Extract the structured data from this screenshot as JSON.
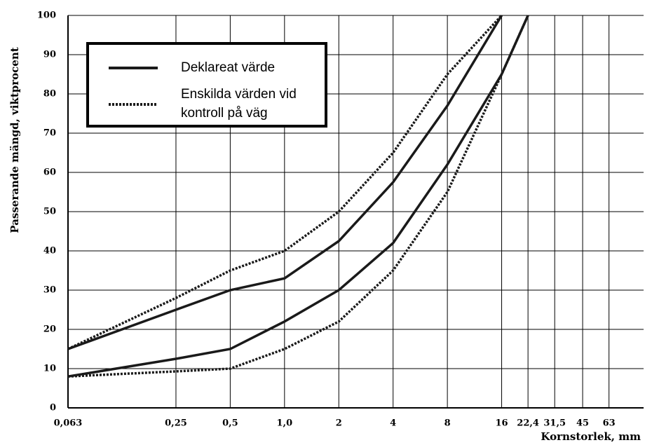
{
  "chart_data": {
    "type": "line",
    "y_label": "Passerande mängd, viktprocent",
    "x_label": "Kornstorlek, mm",
    "x": [
      0.063,
      0.25,
      0.5,
      1.0,
      2,
      4,
      8,
      16,
      22.4
    ],
    "xscale": "log",
    "xlim": [
      0.063,
      98
    ],
    "xticks": [
      {
        "value": 0.063,
        "label": "0,063"
      },
      {
        "value": 0.25,
        "label": "0,25"
      },
      {
        "value": 0.5,
        "label": "0,5"
      },
      {
        "value": 1.0,
        "label": "1,0"
      },
      2,
      4,
      8,
      16,
      {
        "value": 22.4,
        "label": "22,4"
      },
      {
        "value": 31.5,
        "label": "31,5"
      },
      45,
      63
    ],
    "ylim": [
      0,
      100
    ],
    "yticks": [
      0,
      10,
      20,
      30,
      40,
      50,
      60,
      70,
      80,
      90,
      100
    ],
    "grid": true,
    "series": [
      {
        "name": "Deklareat värde",
        "color": "#1a1a1a",
        "dash": "solid",
        "values": [
          15,
          25,
          30,
          33,
          42.5,
          57.5,
          77,
          100,
          null
        ]
      },
      {
        "color": "#1a1a1a",
        "dash": "solid",
        "values": [
          8,
          12.5,
          15,
          22,
          30,
          42,
          62,
          85,
          100
        ]
      },
      {
        "name": "Enskilda värden vid kontroll på väg",
        "color": "#1a1a1a",
        "dash": "dotted",
        "values": [
          15,
          28,
          35,
          40,
          50,
          65,
          85,
          100,
          null
        ]
      },
      {
        "color": "#1a1a1a",
        "dash": "dotted",
        "values": [
          8,
          9.3,
          10,
          15,
          22,
          35,
          55,
          85,
          100
        ]
      }
    ]
  }
}
